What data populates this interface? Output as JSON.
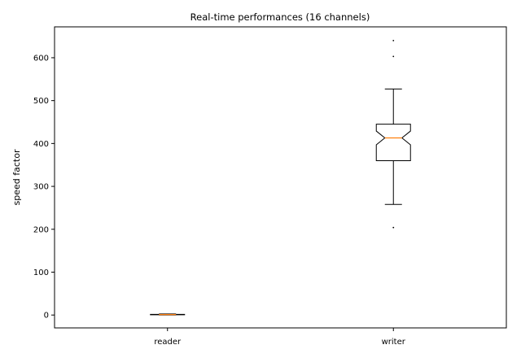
{
  "chart_data": {
    "type": "box",
    "title": "Real-time performances (16 channels)",
    "ylabel": "speed factor",
    "xlabel": "",
    "ylim": [
      -30,
      672
    ],
    "yticks": [
      0,
      100,
      200,
      300,
      400,
      500,
      600
    ],
    "categories": [
      "reader",
      "writer"
    ],
    "notched": true,
    "grid": false,
    "boxes": [
      {
        "category": "reader",
        "whisker_low": 0.2,
        "q1": 0.6,
        "notch_low": 0.8,
        "median": 1.0,
        "notch_high": 1.2,
        "q3": 1.6,
        "whisker_high": 2.4,
        "outliers": []
      },
      {
        "category": "writer",
        "whisker_low": 258,
        "q1": 360,
        "notch_low": 397,
        "median": 413,
        "notch_high": 429,
        "q3": 445,
        "whisker_high": 527,
        "outliers": [
          204,
          603,
          640
        ]
      }
    ],
    "colors": {
      "box": "#000000",
      "median": "#ff7f0e",
      "outlier": "#000000"
    }
  }
}
